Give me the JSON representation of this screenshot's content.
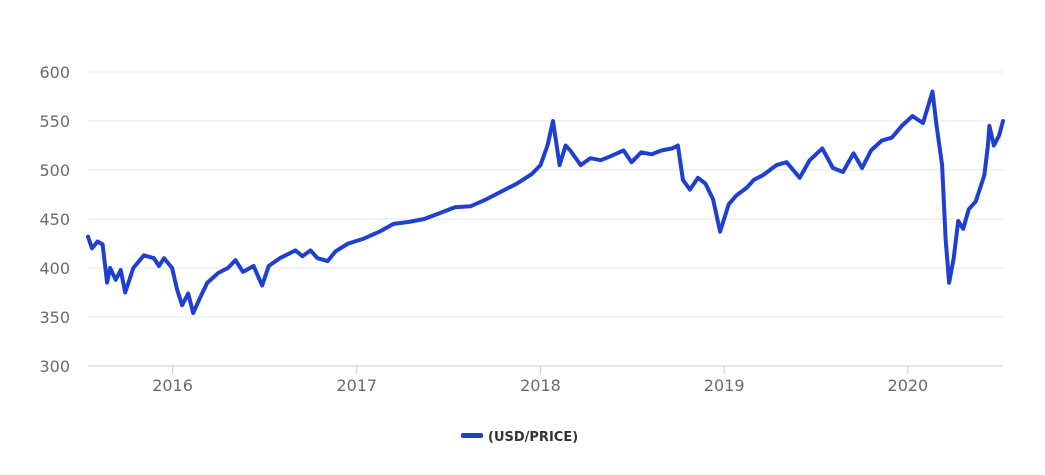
{
  "chart_data": {
    "type": "line",
    "title": "",
    "xlabel": "",
    "ylabel": "",
    "ylim": [
      300,
      600
    ],
    "xlim": [
      "2015-07-17",
      "2020-07-08"
    ],
    "yticks": [
      300,
      350,
      400,
      450,
      500,
      550,
      600
    ],
    "xticks": [
      {
        "date": "2016-01-01",
        "label": "2016"
      },
      {
        "date": "2017-01-01",
        "label": "2017"
      },
      {
        "date": "2018-01-01",
        "label": "2018"
      },
      {
        "date": "2019-01-01",
        "label": "2019"
      },
      {
        "date": "2020-01-01",
        "label": "2020"
      }
    ],
    "grid": true,
    "legend": "bottom-center",
    "series": [
      {
        "name": "(USD/PRICE)",
        "color": "#1f3fd1",
        "points": [
          [
            "2015-07-17",
            432
          ],
          [
            "2015-07-25",
            420
          ],
          [
            "2015-08-05",
            427
          ],
          [
            "2015-08-15",
            424
          ],
          [
            "2015-08-24",
            385
          ],
          [
            "2015-08-30",
            400
          ],
          [
            "2015-09-10",
            388
          ],
          [
            "2015-09-20",
            398
          ],
          [
            "2015-09-29",
            375
          ],
          [
            "2015-10-15",
            400
          ],
          [
            "2015-11-05",
            413
          ],
          [
            "2015-11-25",
            410
          ],
          [
            "2015-12-05",
            402
          ],
          [
            "2015-12-15",
            410
          ],
          [
            "2015-12-31",
            400
          ],
          [
            "2016-01-10",
            378
          ],
          [
            "2016-01-20",
            362
          ],
          [
            "2016-02-01",
            374
          ],
          [
            "2016-02-11",
            354
          ],
          [
            "2016-02-25",
            370
          ],
          [
            "2016-03-10",
            385
          ],
          [
            "2016-04-01",
            395
          ],
          [
            "2016-04-20",
            400
          ],
          [
            "2016-05-05",
            408
          ],
          [
            "2016-05-20",
            396
          ],
          [
            "2016-06-10",
            402
          ],
          [
            "2016-06-27",
            382
          ],
          [
            "2016-07-10",
            402
          ],
          [
            "2016-08-01",
            410
          ],
          [
            "2016-09-01",
            418
          ],
          [
            "2016-09-15",
            412
          ],
          [
            "2016-10-01",
            418
          ],
          [
            "2016-10-15",
            410
          ],
          [
            "2016-11-04",
            407
          ],
          [
            "2016-11-20",
            417
          ],
          [
            "2016-12-15",
            425
          ],
          [
            "2017-01-15",
            430
          ],
          [
            "2017-02-15",
            437
          ],
          [
            "2017-03-15",
            445
          ],
          [
            "2017-04-15",
            447
          ],
          [
            "2017-05-15",
            450
          ],
          [
            "2017-06-15",
            456
          ],
          [
            "2017-07-15",
            462
          ],
          [
            "2017-08-15",
            463
          ],
          [
            "2017-09-15",
            470
          ],
          [
            "2017-10-15",
            478
          ],
          [
            "2017-11-15",
            486
          ],
          [
            "2017-12-15",
            496
          ],
          [
            "2018-01-01",
            505
          ],
          [
            "2018-01-15",
            525
          ],
          [
            "2018-01-26",
            550
          ],
          [
            "2018-02-08",
            505
          ],
          [
            "2018-02-20",
            525
          ],
          [
            "2018-03-01",
            520
          ],
          [
            "2018-03-22",
            505
          ],
          [
            "2018-04-10",
            512
          ],
          [
            "2018-05-01",
            510
          ],
          [
            "2018-05-20",
            514
          ],
          [
            "2018-06-15",
            520
          ],
          [
            "2018-07-01",
            508
          ],
          [
            "2018-07-20",
            518
          ],
          [
            "2018-08-10",
            516
          ],
          [
            "2018-08-30",
            520
          ],
          [
            "2018-09-20",
            522
          ],
          [
            "2018-10-01",
            525
          ],
          [
            "2018-10-11",
            490
          ],
          [
            "2018-10-25",
            480
          ],
          [
            "2018-11-10",
            492
          ],
          [
            "2018-11-25",
            486
          ],
          [
            "2018-12-10",
            470
          ],
          [
            "2018-12-24",
            437
          ],
          [
            "2019-01-10",
            465
          ],
          [
            "2019-01-25",
            474
          ],
          [
            "2019-02-15",
            482
          ],
          [
            "2019-03-01",
            490
          ],
          [
            "2019-03-20",
            495
          ],
          [
            "2019-04-15",
            505
          ],
          [
            "2019-05-05",
            508
          ],
          [
            "2019-05-31",
            492
          ],
          [
            "2019-06-20",
            510
          ],
          [
            "2019-07-15",
            522
          ],
          [
            "2019-08-05",
            502
          ],
          [
            "2019-08-25",
            498
          ],
          [
            "2019-09-15",
            517
          ],
          [
            "2019-10-02",
            502
          ],
          [
            "2019-10-20",
            520
          ],
          [
            "2019-11-10",
            530
          ],
          [
            "2019-11-30",
            533
          ],
          [
            "2019-12-20",
            545
          ],
          [
            "2020-01-10",
            555
          ],
          [
            "2020-01-31",
            548
          ],
          [
            "2020-02-19",
            580
          ],
          [
            "2020-02-27",
            545
          ],
          [
            "2020-03-09",
            505
          ],
          [
            "2020-03-16",
            430
          ],
          [
            "2020-03-23",
            385
          ],
          [
            "2020-04-01",
            410
          ],
          [
            "2020-04-10",
            448
          ],
          [
            "2020-04-20",
            440
          ],
          [
            "2020-05-01",
            460
          ],
          [
            "2020-05-15",
            468
          ],
          [
            "2020-06-01",
            495
          ],
          [
            "2020-06-08",
            525
          ],
          [
            "2020-06-11",
            545
          ],
          [
            "2020-06-20",
            525
          ],
          [
            "2020-06-30",
            535
          ],
          [
            "2020-07-08",
            550
          ]
        ]
      }
    ]
  }
}
